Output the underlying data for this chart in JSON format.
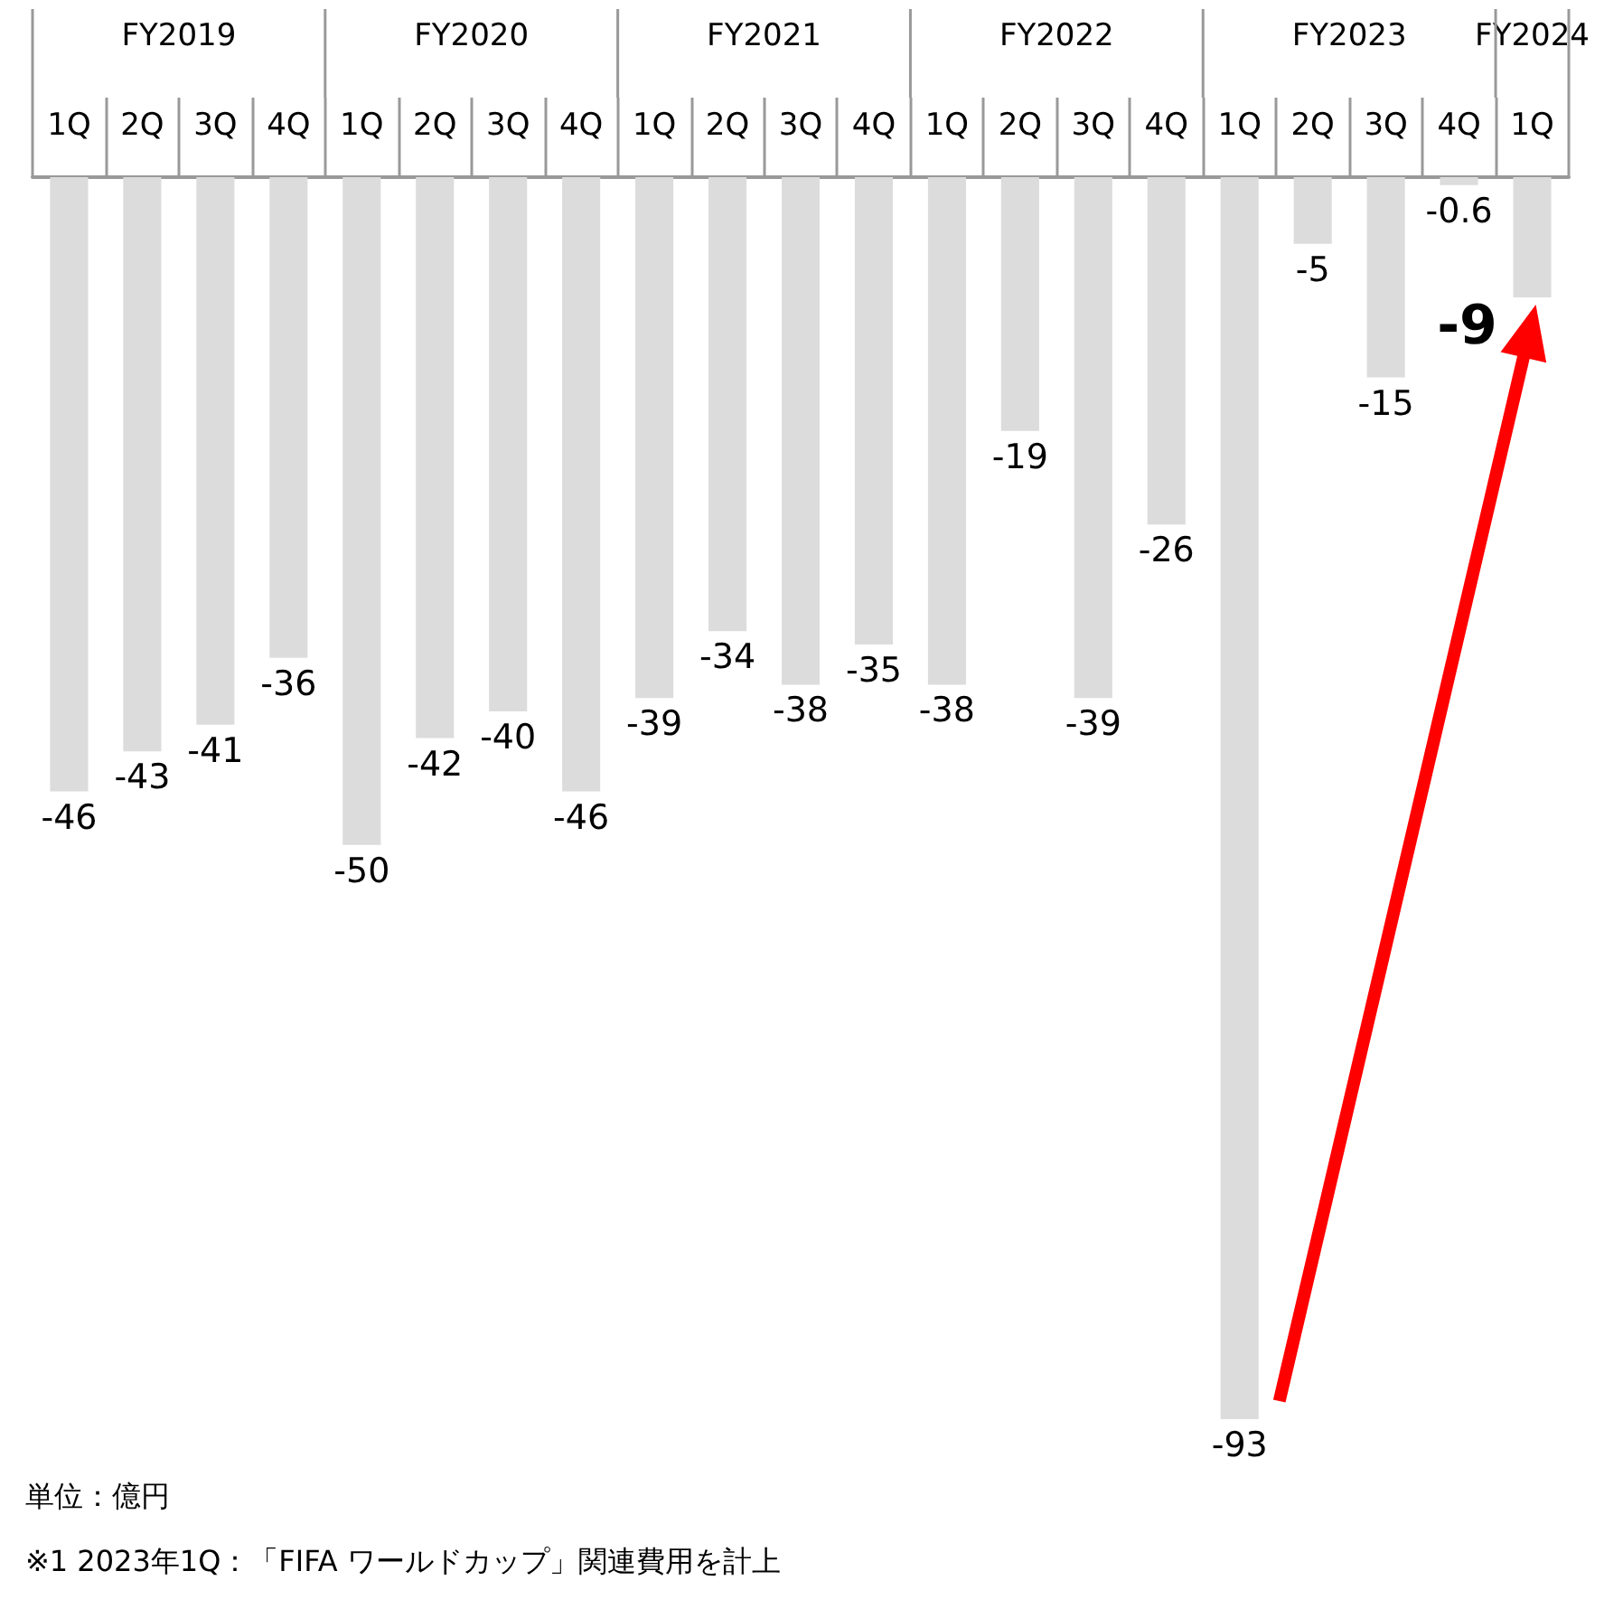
{
  "chart_data": {
    "type": "bar",
    "categories": [
      "1Q",
      "2Q",
      "3Q",
      "4Q",
      "1Q",
      "2Q",
      "3Q",
      "4Q",
      "1Q",
      "2Q",
      "3Q",
      "4Q",
      "1Q",
      "2Q",
      "3Q",
      "4Q",
      "1Q",
      "2Q",
      "3Q",
      "4Q",
      "1Q"
    ],
    "values": [
      -46,
      -43,
      -41,
      -36,
      -50,
      -42,
      -40,
      -46,
      -39,
      -34,
      -38,
      -35,
      -38,
      -19,
      -39,
      -26,
      -93,
      -5,
      -15,
      -0.6,
      -9
    ],
    "color": "#dcdcdc",
    "ylim": [
      -93,
      0
    ],
    "data_labels": true,
    "grid": false,
    "annotations": [
      "FY2019",
      "FY2020",
      "FY2021",
      "FY2022",
      "FY2023",
      "FY2024",
      "単位：億円",
      "※1 2023年1Q：「FIFA ワールドカップ」関連費用を計上"
    ]
  }
}
